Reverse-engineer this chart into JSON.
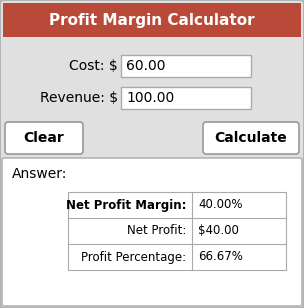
{
  "title": "Profit Margin Calculator",
  "title_bg": "#b94a3a",
  "title_color": "#ffffff",
  "bg_color": "#e0e0e0",
  "white": "#ffffff",
  "border_color": "#aaaaaa",
  "dark_border": "#999999",
  "cost_label": "Cost: $",
  "cost_value": "60.00",
  "revenue_label": "Revenue: $",
  "revenue_value": "100.00",
  "btn_clear": "Clear",
  "btn_calculate": "Calculate",
  "answer_label": "Answer:",
  "table_rows": [
    [
      "Net Profit Margin:",
      "40.00%"
    ],
    [
      "Net Profit:",
      "$40.00"
    ],
    [
      "Profit Percentage:",
      "66.67%"
    ]
  ],
  "table_col1_bold": [
    true,
    false,
    false
  ],
  "figw": 3.04,
  "figh": 3.08,
  "dpi": 100
}
